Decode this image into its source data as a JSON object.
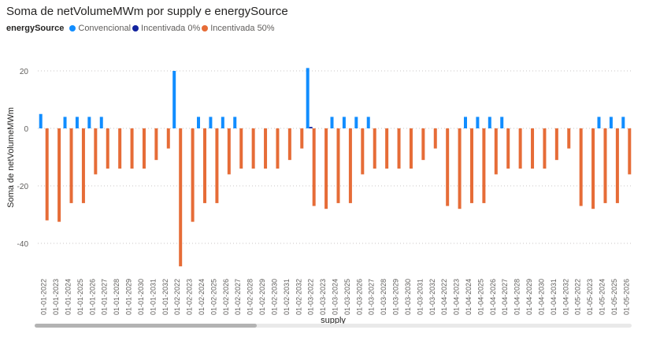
{
  "title": "Soma de netVolumeMWm por supply e energySource",
  "legend": {
    "title": "energySource",
    "items": [
      {
        "label": "Convencional",
        "color": "#118DFF"
      },
      {
        "label": "Incentivada 0%",
        "color": "#12239E"
      },
      {
        "label": "Incentivada 50%",
        "color": "#E66C37"
      }
    ]
  },
  "chart_data": {
    "type": "bar",
    "title": "Soma de netVolumeMWm por supply e energySource",
    "xlabel": "supply",
    "ylabel": "Soma de netVolumeMWm",
    "ylim": [
      -50,
      22
    ],
    "yticks": [
      20,
      0,
      -20,
      -40
    ],
    "grid": true,
    "legend_position": "top-left",
    "categories": [
      "01-01-2022",
      "01-01-2023",
      "01-01-2024",
      "01-01-2025",
      "01-01-2026",
      "01-01-2027",
      "01-01-2028",
      "01-01-2029",
      "01-01-2030",
      "01-01-2031",
      "01-01-2032",
      "01-02-2022",
      "01-02-2023",
      "01-02-2024",
      "01-02-2025",
      "01-02-2026",
      "01-02-2027",
      "01-02-2028",
      "01-02-2029",
      "01-02-2030",
      "01-02-2031",
      "01-02-2032",
      "01-03-2022",
      "01-03-2023",
      "01-03-2024",
      "01-03-2025",
      "01-03-2026",
      "01-03-2027",
      "01-03-2028",
      "01-03-2029",
      "01-03-2030",
      "01-03-2031",
      "01-03-2032",
      "01-04-2022",
      "01-04-2023",
      "01-04-2024",
      "01-04-2025",
      "01-04-2026",
      "01-04-2027",
      "01-04-2028",
      "01-04-2029",
      "01-04-2030",
      "01-04-2031",
      "01-04-2032",
      "01-05-2022",
      "01-05-2023",
      "01-05-2024",
      "01-05-2025",
      "01-05-2026"
    ],
    "series": [
      {
        "name": "Convencional",
        "color": "#118DFF",
        "values": [
          5,
          0,
          4,
          4,
          4,
          4,
          0,
          0,
          0,
          0,
          0,
          20,
          0,
          4,
          4,
          4,
          4,
          0,
          0,
          0,
          0,
          0,
          21,
          0,
          4,
          4,
          4,
          4,
          0,
          0,
          0,
          0,
          0,
          0,
          0,
          4,
          4,
          4,
          4,
          0,
          0,
          0,
          0,
          0,
          0,
          0,
          4,
          4,
          4
        ]
      },
      {
        "name": "Incentivada 0%",
        "color": "#12239E",
        "values": [
          0,
          0,
          0,
          0,
          0,
          0,
          0,
          0,
          0,
          0,
          0,
          0,
          0,
          0,
          0,
          0,
          0,
          0,
          0,
          0,
          0,
          0,
          0.5,
          0,
          0,
          0,
          0,
          0,
          0,
          0,
          0,
          0,
          0,
          0,
          0,
          0,
          0,
          0,
          0,
          0,
          0,
          0,
          0,
          0,
          0,
          0,
          0,
          0,
          0
        ]
      },
      {
        "name": "Incentivada 50%",
        "color": "#E66C37",
        "values": [
          -32,
          -32.5,
          -26,
          -26,
          -16,
          -14,
          -14,
          -14,
          -14,
          -11,
          -7,
          -48,
          -32.5,
          -26,
          -26,
          -16,
          -14,
          -14,
          -14,
          -14,
          -11,
          -7,
          -27,
          -28,
          -26,
          -26,
          -16,
          -14,
          -14,
          -14,
          -14,
          -11,
          -7,
          -27,
          -28,
          -26,
          -26,
          -16,
          -14,
          -14,
          -14,
          -14,
          -11,
          -7,
          -27,
          -28,
          -26,
          -26,
          -16
        ]
      }
    ]
  }
}
